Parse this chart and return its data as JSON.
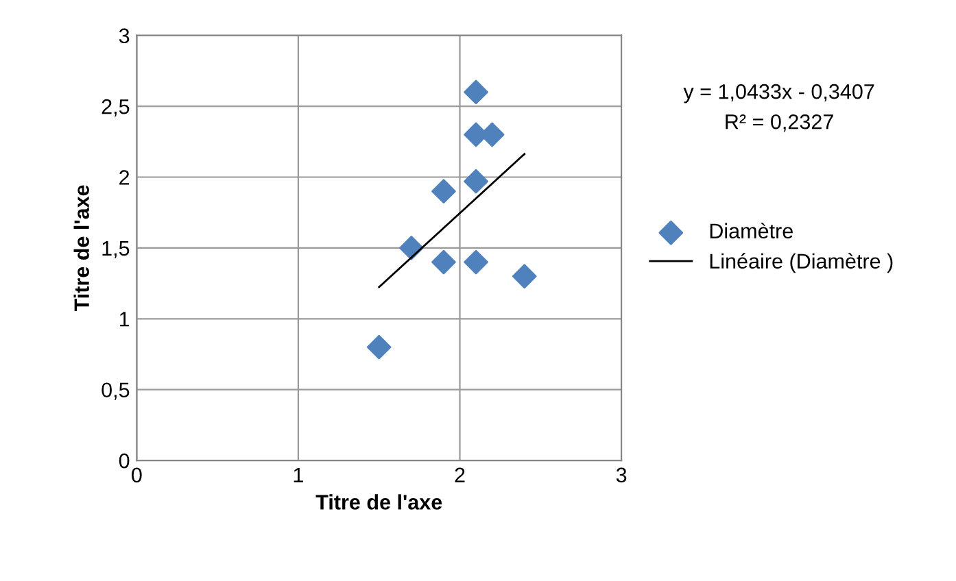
{
  "chart_data": {
    "type": "scatter",
    "xlabel": "Titre de l'axe",
    "ylabel": "Titre de l'axe",
    "series": [
      {
        "name": "Diamètre",
        "color": "#4f81bd",
        "marker": "diamond",
        "x": [
          1.5,
          1.7,
          1.9,
          1.9,
          2.1,
          2.1,
          2.2,
          2.1,
          2.1,
          2.4
        ],
        "values": [
          0.8,
          1.5,
          1.9,
          1.4,
          2.6,
          2.3,
          2.3,
          1.97,
          1.4,
          1.3
        ]
      },
      {
        "name": "Linéaire (Diamètre )",
        "type": "line",
        "color": "#000000",
        "marker": "none",
        "x": [
          1.5,
          2.4
        ],
        "values": [
          1.224,
          2.163
        ]
      }
    ],
    "xlim": [
      0,
      3
    ],
    "xticks": [
      0,
      1,
      2,
      3
    ],
    "ylim": [
      0,
      3
    ],
    "yticks": [
      0,
      {
        "value": 0.5,
        "label": "0,5"
      },
      1,
      {
        "value": 1.5,
        "label": "1,5"
      },
      2,
      {
        "value": 2.5,
        "label": "2,5"
      },
      3
    ],
    "grid": true,
    "legend": "right",
    "annotations": [
      "y = 1,0433x - 0,3407",
      "R² = 0,2327"
    ]
  }
}
